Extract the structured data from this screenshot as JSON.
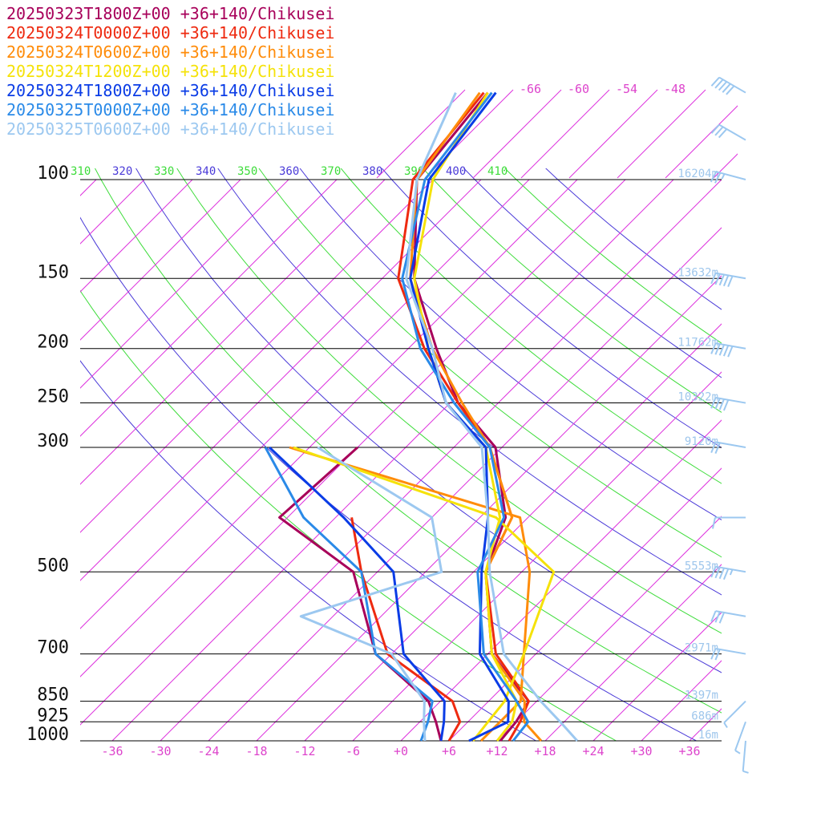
{
  "legend": [
    {
      "label": "20250323T1800Z+00 +36+140/Chikusei",
      "color": "#a8005a"
    },
    {
      "label": "20250324T0000Z+00 +36+140/Chikusei",
      "color": "#ee2a10"
    },
    {
      "label": "20250324T0600Z+00 +36+140/Chikusei",
      "color": "#ff8c0a"
    },
    {
      "label": "20250324T1200Z+00 +36+140/Chikusei",
      "color": "#f5e20a"
    },
    {
      "label": "20250324T1800Z+00 +36+140/Chikusei",
      "color": "#0a3ce6"
    },
    {
      "label": "20250325T0000Z+00 +36+140/Chikusei",
      "color": "#2a8ae8"
    },
    {
      "label": "20250325T0600Z+00 +36+140/Chikusei",
      "color": "#9cc8f0"
    }
  ],
  "chart_data": {
    "type": "line",
    "pressure_levels": [
      {
        "p": 100,
        "label": "100",
        "height": "16204m"
      },
      {
        "p": 150,
        "label": "150",
        "height": "13632m"
      },
      {
        "p": 200,
        "label": "200",
        "height": "11762m"
      },
      {
        "p": 250,
        "label": "250",
        "height": "10322m"
      },
      {
        "p": 300,
        "label": "300",
        "height": "9120m"
      },
      {
        "p": 500,
        "label": "500",
        "height": "5553m"
      },
      {
        "p": 700,
        "label": "700",
        "height": "2971m"
      },
      {
        "p": 850,
        "label": "850",
        "height": "1397m"
      },
      {
        "p": 925,
        "label": "925",
        "height": "686m"
      },
      {
        "p": 1000,
        "label": "1000",
        "height": "16m"
      }
    ],
    "temperature_ticks": [
      {
        "t": -36,
        "label": "-36"
      },
      {
        "t": -30,
        "label": "-30"
      },
      {
        "t": -24,
        "label": "-24"
      },
      {
        "t": -18,
        "label": "-18"
      },
      {
        "t": -12,
        "label": "-12"
      },
      {
        "t": -6,
        "label": "-6"
      },
      {
        "t": 0,
        "label": "+0"
      },
      {
        "t": 6,
        "label": "+6"
      },
      {
        "t": 12,
        "label": "+12"
      },
      {
        "t": 18,
        "label": "+18"
      },
      {
        "t": 24,
        "label": "+24"
      },
      {
        "t": 30,
        "label": "+30"
      },
      {
        "t": 36,
        "label": "+36"
      }
    ],
    "upper_temperature_labels": [
      "-66",
      "-60",
      "-54",
      "-48"
    ],
    "theta_labels": [
      "310",
      "320",
      "330",
      "340",
      "350",
      "360",
      "370",
      "380",
      "390",
      "400",
      "410"
    ],
    "xlim": [
      -40,
      40
    ],
    "plim": [
      1000,
      100
    ],
    "series": [
      {
        "name": "20250323T1800Z+00 +36+140/Chikusei",
        "color": "#a8005a",
        "temperature": [
          [
            1000,
            12.4
          ],
          [
            925,
            12.0
          ],
          [
            850,
            11.0
          ],
          [
            700,
            0.5
          ],
          [
            500,
            -10.5
          ],
          [
            400,
            -14.8
          ],
          [
            300,
            -24.8
          ],
          [
            250,
            -35.0
          ],
          [
            200,
            -44.5
          ],
          [
            150,
            -56.0
          ],
          [
            100,
            -68.0
          ],
          [
            70,
            -70.0
          ]
        ],
        "dewpoint": [
          [
            1000,
            5.0
          ],
          [
            925,
            2.0
          ],
          [
            850,
            -1.5
          ],
          [
            700,
            -14.0
          ],
          [
            500,
            -27.0
          ],
          [
            400,
            -43.0
          ],
          [
            300,
            -42.0
          ]
        ]
      },
      {
        "name": "20250324T0000Z+00 +36+140/Chikusei",
        "color": "#ee2a10",
        "temperature": [
          [
            1000,
            13.5
          ],
          [
            925,
            12.5
          ],
          [
            850,
            11.0
          ],
          [
            700,
            1.0
          ],
          [
            500,
            -10.5
          ],
          [
            400,
            -14.0
          ],
          [
            300,
            -25.5
          ],
          [
            250,
            -35.0
          ],
          [
            200,
            -46.0
          ],
          [
            150,
            -58.0
          ],
          [
            100,
            -68.5
          ],
          [
            70,
            -70.5
          ]
        ],
        "dewpoint": [
          [
            1000,
            6.0
          ],
          [
            925,
            5.0
          ],
          [
            850,
            1.5
          ],
          [
            700,
            -12.5
          ],
          [
            500,
            -26.0
          ],
          [
            400,
            -34.0
          ]
        ]
      },
      {
        "name": "20250324T0600Z+00 +36+140/Chikusei",
        "color": "#ff8c0a",
        "temperature": [
          [
            1000,
            17.5
          ],
          [
            925,
            13.0
          ],
          [
            850,
            10.5
          ],
          [
            700,
            0.5
          ],
          [
            500,
            -10.5
          ],
          [
            400,
            -14.0
          ],
          [
            300,
            -25.5
          ],
          [
            250,
            -34.5
          ],
          [
            200,
            -45.0
          ],
          [
            150,
            -56.5
          ],
          [
            100,
            -68.0
          ],
          [
            70,
            -71.0
          ]
        ],
        "dewpoint": [
          [
            1000,
            10.0
          ],
          [
            925,
            10.0
          ],
          [
            850,
            10.0
          ],
          [
            700,
            4.5
          ],
          [
            500,
            -5.0
          ],
          [
            400,
            -13.0
          ],
          [
            300,
            -50.5
          ]
        ]
      },
      {
        "name": "20250324T1200Z+00 +36+140/Chikusei",
        "color": "#f5e20a",
        "temperature": [
          [
            1000,
            12.0
          ],
          [
            925,
            11.5
          ],
          [
            850,
            9.5
          ],
          [
            700,
            0.5
          ],
          [
            500,
            -10.5
          ],
          [
            400,
            -15.5
          ],
          [
            300,
            -26.0
          ],
          [
            250,
            -36.5
          ],
          [
            200,
            -45.5
          ],
          [
            150,
            -56.0
          ],
          [
            100,
            -66.0
          ],
          [
            70,
            -70.0
          ]
        ],
        "dewpoint": [
          [
            1000,
            9.0
          ],
          [
            925,
            8.5
          ],
          [
            850,
            8.0
          ],
          [
            700,
            4.5
          ],
          [
            500,
            -2.0
          ],
          [
            400,
            -16.0
          ],
          [
            300,
            -50.0
          ]
        ]
      },
      {
        "name": "20250324T1800Z+00 +36+140/Chikusei",
        "color": "#0a3ce6",
        "temperature": [
          [
            1000,
            8.5
          ],
          [
            925,
            11.0
          ],
          [
            850,
            8.5
          ],
          [
            700,
            -1.0
          ],
          [
            500,
            -11.0
          ],
          [
            400,
            -17.0
          ],
          [
            300,
            -26.0
          ],
          [
            250,
            -36.5
          ],
          [
            200,
            -45.5
          ],
          [
            150,
            -56.5
          ],
          [
            100,
            -66.5
          ],
          [
            70,
            -69.0
          ]
        ],
        "dewpoint": [
          [
            1000,
            5.0
          ],
          [
            925,
            3.0
          ],
          [
            850,
            0.5
          ],
          [
            700,
            -10.5
          ],
          [
            500,
            -22.0
          ],
          [
            400,
            -35.0
          ],
          [
            300,
            -53.0
          ]
        ]
      },
      {
        "name": "20250325T0000Z+00 +36+140/Chikusei",
        "color": "#2a8ae8",
        "temperature": [
          [
            1000,
            14.0
          ],
          [
            925,
            13.5
          ],
          [
            850,
            9.5
          ],
          [
            700,
            -0.5
          ],
          [
            500,
            -11.5
          ],
          [
            400,
            -15.0
          ],
          [
            300,
            -25.5
          ],
          [
            250,
            -35.5
          ],
          [
            200,
            -46.5
          ],
          [
            150,
            -57.5
          ],
          [
            100,
            -67.0
          ],
          [
            70,
            -69.5
          ]
        ],
        "dewpoint": [
          [
            1000,
            2.5
          ],
          [
            925,
            1.0
          ],
          [
            850,
            -1.0
          ],
          [
            700,
            -14.0
          ],
          [
            500,
            -26.0
          ],
          [
            400,
            -40.0
          ],
          [
            300,
            -53.5
          ]
        ]
      },
      {
        "name": "20250325T0600Z+00 +36+140/Chikusei",
        "color": "#9cc8f0",
        "temperature": [
          [
            1000,
            22.0
          ],
          [
            925,
            17.5
          ],
          [
            850,
            12.5
          ],
          [
            700,
            2.0
          ],
          [
            500,
            -10.0
          ],
          [
            400,
            -17.0
          ],
          [
            300,
            -26.5
          ],
          [
            250,
            -36.5
          ],
          [
            200,
            -45.0
          ],
          [
            150,
            -57.0
          ],
          [
            100,
            -68.0
          ],
          [
            70,
            -74.0
          ]
        ],
        "dewpoint": [
          [
            1000,
            3.0
          ],
          [
            925,
            0.5
          ],
          [
            850,
            -2.0
          ],
          [
            700,
            -12.0
          ],
          [
            600,
            -28.0
          ],
          [
            500,
            -16.0
          ],
          [
            400,
            -24.0
          ],
          [
            300,
            -47.0
          ]
        ]
      }
    ],
    "wind_barbs": [
      {
        "p": 70,
        "speed_kt": 50,
        "direction_deg": 300
      },
      {
        "p": 85,
        "speed_kt": 30,
        "direction_deg": 300
      },
      {
        "p": 100,
        "speed_kt": 25,
        "direction_deg": 285
      },
      {
        "p": 150,
        "speed_kt": 50,
        "direction_deg": 280
      },
      {
        "p": 200,
        "speed_kt": 50,
        "direction_deg": 280
      },
      {
        "p": 250,
        "speed_kt": 40,
        "direction_deg": 280
      },
      {
        "p": 300,
        "speed_kt": 20,
        "direction_deg": 280
      },
      {
        "p": 400,
        "speed_kt": 10,
        "direction_deg": 270
      },
      {
        "p": 500,
        "speed_kt": 45,
        "direction_deg": 280
      },
      {
        "p": 600,
        "speed_kt": 30,
        "direction_deg": 280
      },
      {
        "p": 700,
        "speed_kt": 20,
        "direction_deg": 280
      },
      {
        "p": 850,
        "speed_kt": 5,
        "direction_deg": 225
      },
      {
        "p": 925,
        "speed_kt": 5,
        "direction_deg": 200
      },
      {
        "p": 1000,
        "speed_kt": 5,
        "direction_deg": 185
      }
    ]
  }
}
